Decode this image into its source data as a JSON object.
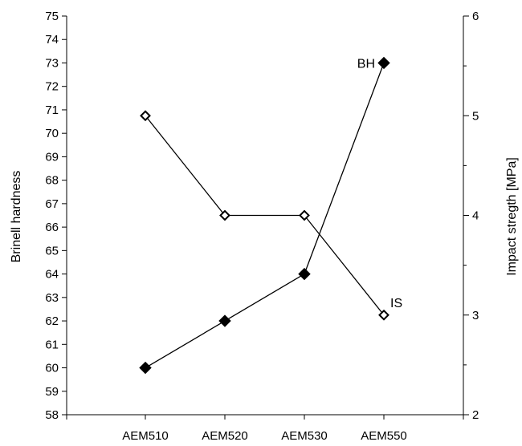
{
  "chart_data": {
    "type": "line",
    "categories": [
      "AEM510",
      "AEM520",
      "AEM530",
      "AEM550"
    ],
    "series": [
      {
        "name": "BH",
        "axis": "left",
        "marker": "filled-diamond",
        "values": [
          60,
          62,
          64,
          73
        ]
      },
      {
        "name": "IS",
        "axis": "right",
        "marker": "hollow-diamond",
        "values": [
          5,
          4,
          4,
          3
        ]
      }
    ],
    "ylabel": "Brinell hardness",
    "ylabel_right": "Impact stregth [MPa]",
    "ylim": [
      58,
      75
    ],
    "ylim_right": [
      2,
      6
    ],
    "yticks": [
      58,
      59,
      60,
      61,
      62,
      63,
      64,
      65,
      66,
      67,
      68,
      69,
      70,
      71,
      72,
      73,
      74,
      75
    ],
    "yticks_right": [
      2,
      3,
      4,
      5,
      6
    ],
    "grid": false,
    "line_color": "#000000"
  }
}
